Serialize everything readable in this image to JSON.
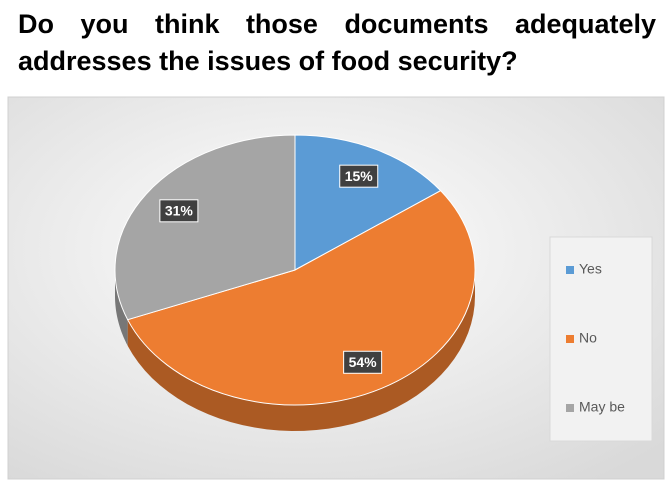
{
  "chart_data": {
    "type": "pie",
    "title": "Do you think those documents adequately addresses the issues of food security?",
    "categories": [
      "Yes",
      "No",
      "May be"
    ],
    "values": [
      15,
      54,
      31
    ],
    "value_labels": [
      "15%",
      "54%",
      "31%"
    ],
    "colors": [
      "#5b9bd5",
      "#ed7d31",
      "#a5a5a5"
    ],
    "legend": "right"
  }
}
